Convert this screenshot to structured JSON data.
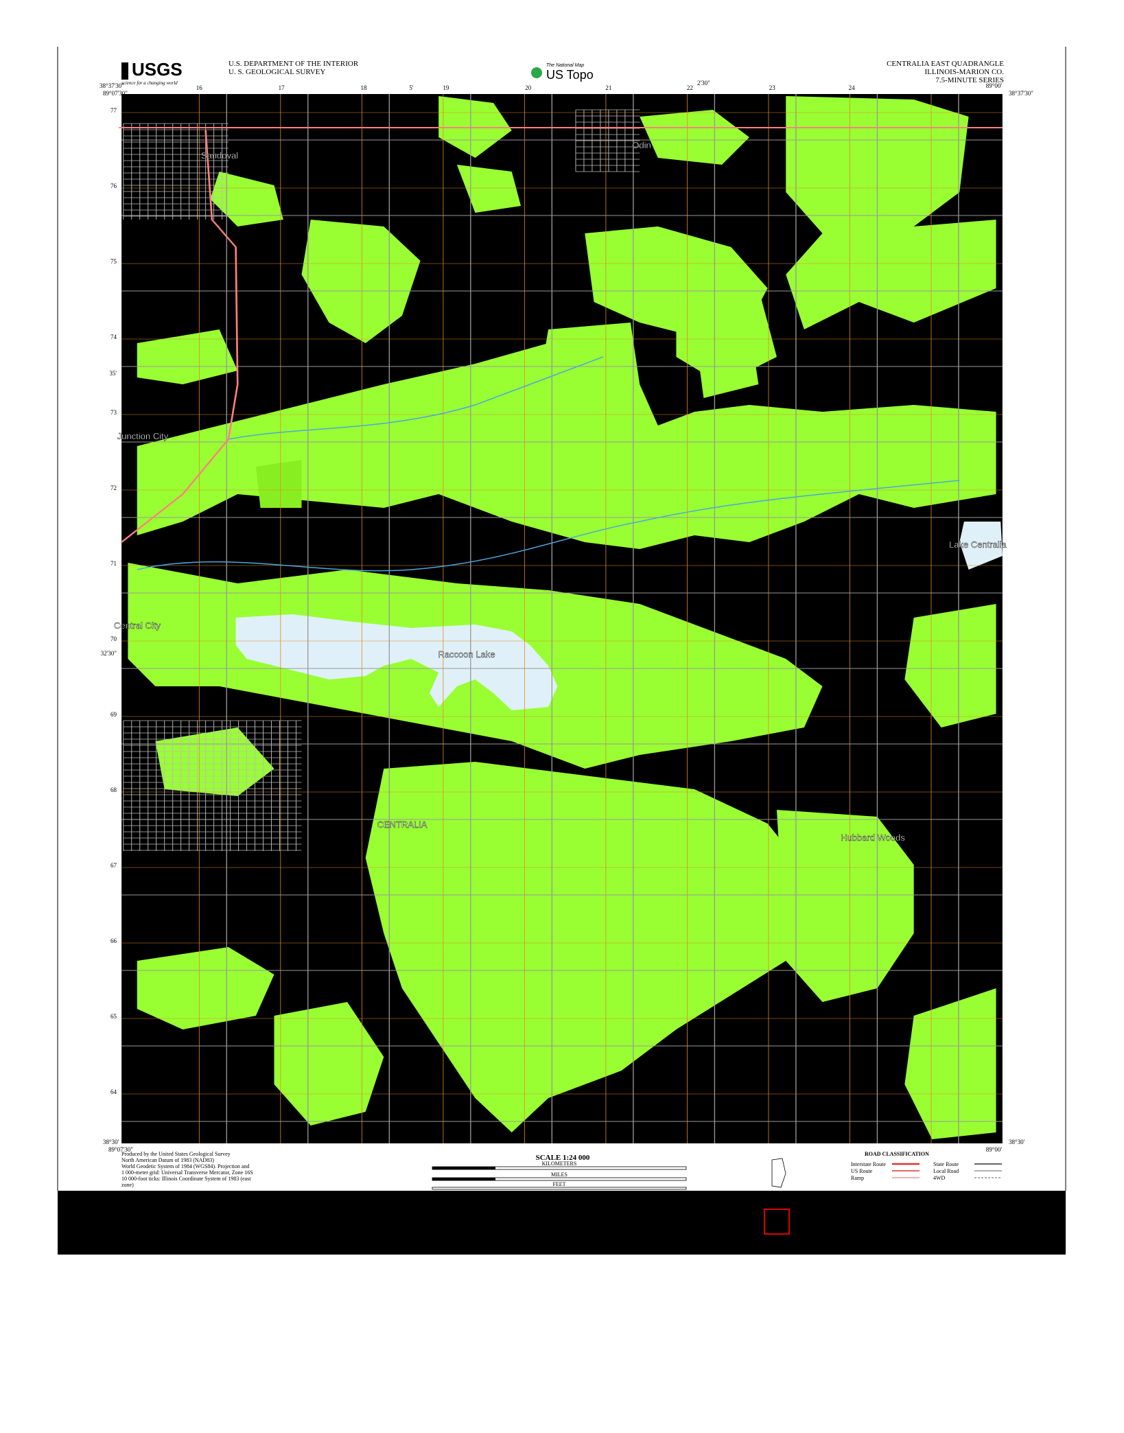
{
  "header": {
    "logo": "USGS",
    "logo_tagline": "science for a changing world",
    "agency_line1": "U.S. DEPARTMENT OF THE INTERIOR",
    "agency_line2": "U. S. GEOLOGICAL SURVEY",
    "center_logo_top": "The National Map",
    "center_logo": "US Topo",
    "quad_title": "CENTRALIA EAST QUADRANGLE",
    "state_county": "ILLINOIS-MARION CO.",
    "series": "7.5-MINUTE SERIES"
  },
  "corners": {
    "top_left_lat": "38°37'30\"",
    "top_left_lon": "89°07'30\"",
    "top_right_lat": "38°37'30\"",
    "top_right_lon": "89°00'",
    "bottom_left_lat": "38°30'",
    "bottom_left_lon": "89°07'30\"",
    "bottom_right_lat": "38°30'",
    "bottom_right_lon": "89°00'"
  },
  "top_ticks": [
    "16",
    "17",
    "18",
    "5'",
    "19",
    "20",
    "21",
    "2'30\"",
    "22",
    "23",
    "24"
  ],
  "left_ticks": [
    "77",
    "76",
    "75",
    "74",
    "73",
    "72",
    "71",
    "70",
    "69",
    "68",
    "67",
    "66",
    "65",
    "64"
  ],
  "lat_ticks": [
    "35'",
    "32'30\""
  ],
  "places": [
    "Sandoval",
    "Odin",
    "Junction City",
    "Central City",
    "Raccoon Lake",
    "CENTRALIA",
    "Hubbard Woods",
    "Lake Centralia"
  ],
  "footer": {
    "credits": [
      "Produced by the United States Geological Survey",
      "North American Datum of 1983 (NAD83)",
      "World Geodetic System of 1984 (WGS84). Projection and",
      "1 000-meter grid: Universal Transverse Mercator, Zone 16S",
      "10 000-foot ticks: Illinois Coordinate System of 1983 (east",
      "zone)"
    ],
    "scale": "SCALE 1:24 000",
    "scale_units": [
      "KILOMETERS",
      "MILES",
      "FEET"
    ],
    "road_classification": {
      "title": "ROAD CLASSIFICATION",
      "items": [
        "Interstate Route",
        "US Route",
        "Ramp",
        "State Route",
        "Local Road",
        "4WD"
      ]
    }
  }
}
